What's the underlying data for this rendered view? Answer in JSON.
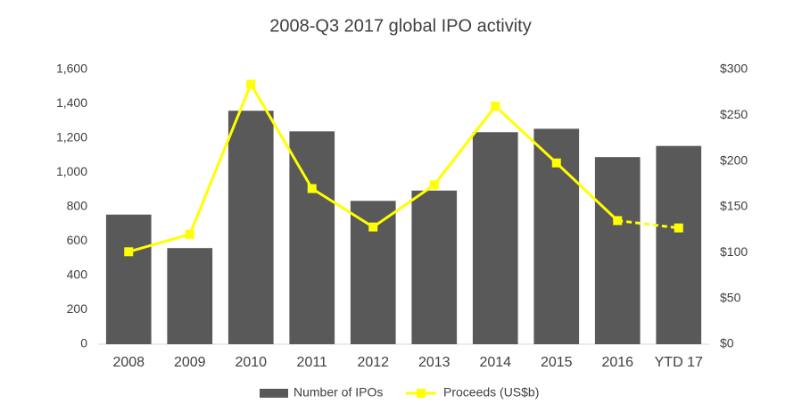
{
  "chart_data": {
    "type": "bar_line",
    "title": "2008-Q3 2017 global IPO activity",
    "categories": [
      "2008",
      "2009",
      "2010",
      "2011",
      "2012",
      "2013",
      "2014",
      "2015",
      "2016",
      "YTD 17"
    ],
    "series": [
      {
        "name": "Number of IPOs",
        "type": "bar",
        "color": "#595959",
        "values": [
          755,
          560,
          1360,
          1240,
          835,
          895,
          1235,
          1255,
          1090,
          1155
        ]
      },
      {
        "name": "Proceeds (US$b)",
        "type": "line",
        "axis": "y2",
        "color": "#ffff00",
        "dash_last_segment": true,
        "values": [
          101,
          120,
          284,
          170,
          128,
          174,
          260,
          198,
          135,
          127
        ]
      }
    ],
    "ylim": [
      0,
      1600
    ],
    "yticks": [
      0,
      200,
      400,
      600,
      800,
      {
        "value": 1000,
        "label": "1,000"
      },
      {
        "value": 1200,
        "label": "1,200"
      },
      {
        "value": 1400,
        "label": "1,400"
      },
      {
        "value": 1600,
        "label": "1,600"
      }
    ],
    "y2lim": [
      0,
      300
    ],
    "y2ticks": [
      {
        "value": 0,
        "label": "$0"
      },
      {
        "value": 50,
        "label": "$50"
      },
      {
        "value": 100,
        "label": "$100"
      },
      {
        "value": 150,
        "label": "$150"
      },
      {
        "value": 200,
        "label": "$200"
      },
      {
        "value": 250,
        "label": "$250"
      },
      {
        "value": 300,
        "label": "$300"
      }
    ],
    "grid": false,
    "legend": "bottom"
  }
}
